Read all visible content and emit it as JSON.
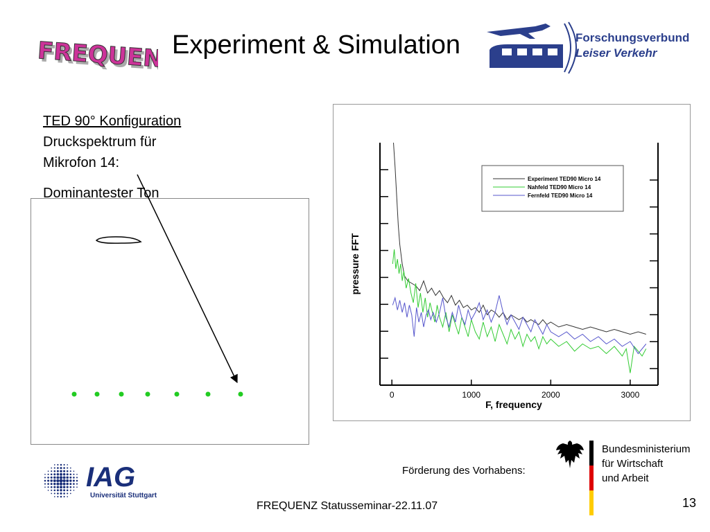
{
  "header": {
    "title": "Experiment & Simulation",
    "frequenz_logo_text": "FREQUENZ",
    "partner_logo": {
      "line1": "Forschungsverbund",
      "line2": "Leiser Verkehr"
    }
  },
  "text_block": {
    "line1": "TED 90° Konfiguration",
    "line2": "Druckspektrum für",
    "line3": "Mikrofon 14:",
    "line4": "Dominantester Ton"
  },
  "simulation": {
    "microphone_count": 7
  },
  "chart_data": {
    "type": "line",
    "xlabel": "F, frequency",
    "ylabel": "pressure FFT",
    "xlim": [
      -150,
      3350
    ],
    "xticks": [
      0,
      1000,
      2000,
      3000
    ],
    "ylim": [
      0,
      1
    ],
    "y_tick_labels": false,
    "legend_placement": "top-right",
    "series": [
      {
        "name": "Experiment TED90 Micro 14",
        "color": "#333333",
        "x": [
          20,
          40,
          60,
          80,
          100,
          130,
          160,
          200,
          250,
          300,
          350,
          400,
          450,
          500,
          550,
          600,
          650,
          700,
          750,
          800,
          850,
          900,
          950,
          1000,
          1050,
          1100,
          1150,
          1200,
          1250,
          1300,
          1350,
          1400,
          1450,
          1500,
          1550,
          1600,
          1650,
          1700,
          1750,
          1800,
          1850,
          1900,
          1950,
          2000,
          2100,
          2200,
          2300,
          2400,
          2500,
          2600,
          2700,
          2800,
          2900,
          3000,
          3100,
          3200
        ],
        "y": [
          1.0,
          0.9,
          0.78,
          0.66,
          0.58,
          0.5,
          0.45,
          0.43,
          0.42,
          0.41,
          0.39,
          0.43,
          0.38,
          0.4,
          0.37,
          0.39,
          0.36,
          0.34,
          0.37,
          0.33,
          0.35,
          0.32,
          0.33,
          0.31,
          0.32,
          0.3,
          0.33,
          0.29,
          0.31,
          0.3,
          0.28,
          0.3,
          0.27,
          0.29,
          0.28,
          0.27,
          0.28,
          0.26,
          0.27,
          0.26,
          0.25,
          0.27,
          0.25,
          0.26,
          0.24,
          0.25,
          0.24,
          0.23,
          0.24,
          0.23,
          0.22,
          0.23,
          0.22,
          0.21,
          0.22,
          0.21
        ]
      },
      {
        "name": "Nahfeld TED90 Micro 14",
        "color": "#33cc33",
        "x": [
          10,
          30,
          50,
          70,
          90,
          110,
          130,
          150,
          180,
          210,
          240,
          270,
          300,
          330,
          360,
          390,
          420,
          450,
          480,
          510,
          540,
          570,
          600,
          640,
          680,
          720,
          760,
          800,
          840,
          880,
          920,
          960,
          1000,
          1050,
          1100,
          1150,
          1200,
          1250,
          1300,
          1350,
          1400,
          1450,
          1500,
          1550,
          1600,
          1650,
          1700,
          1750,
          1800,
          1850,
          1900,
          1950,
          2000,
          2100,
          2200,
          2300,
          2400,
          2500,
          2600,
          2700,
          2800,
          2900,
          2950,
          3000,
          3050,
          3100,
          3150,
          3200
        ],
        "y": [
          0.5,
          0.56,
          0.48,
          0.52,
          0.46,
          0.5,
          0.43,
          0.47,
          0.4,
          0.44,
          0.38,
          0.34,
          0.42,
          0.32,
          0.38,
          0.3,
          0.36,
          0.28,
          0.34,
          0.3,
          0.26,
          0.33,
          0.28,
          0.24,
          0.3,
          0.22,
          0.29,
          0.25,
          0.21,
          0.28,
          0.24,
          0.2,
          0.27,
          0.22,
          0.19,
          0.26,
          0.2,
          0.24,
          0.18,
          0.25,
          0.21,
          0.17,
          0.23,
          0.19,
          0.22,
          0.16,
          0.21,
          0.18,
          0.2,
          0.15,
          0.2,
          0.17,
          0.19,
          0.16,
          0.18,
          0.14,
          0.17,
          0.15,
          0.16,
          0.13,
          0.16,
          0.12,
          0.15,
          0.05,
          0.16,
          0.14,
          0.12,
          0.15
        ]
      },
      {
        "name": "Fernfeld TED90 Micro 14",
        "color": "#5555cc",
        "x": [
          10,
          40,
          70,
          100,
          130,
          160,
          190,
          220,
          250,
          280,
          310,
          340,
          370,
          400,
          430,
          460,
          490,
          520,
          560,
          600,
          640,
          680,
          720,
          760,
          800,
          840,
          880,
          920,
          960,
          1000,
          1050,
          1100,
          1150,
          1200,
          1250,
          1300,
          1350,
          1400,
          1450,
          1500,
          1550,
          1600,
          1650,
          1700,
          1750,
          1800,
          1850,
          1900,
          1950,
          2000,
          2100,
          2200,
          2300,
          2400,
          2500,
          2600,
          2700,
          2800,
          2900,
          3000,
          3100,
          3200
        ],
        "y": [
          0.33,
          0.36,
          0.31,
          0.35,
          0.3,
          0.34,
          0.28,
          0.33,
          0.29,
          0.2,
          0.32,
          0.26,
          0.3,
          0.24,
          0.29,
          0.31,
          0.27,
          0.3,
          0.26,
          0.3,
          0.36,
          0.28,
          0.24,
          0.3,
          0.26,
          0.33,
          0.28,
          0.25,
          0.31,
          0.27,
          0.3,
          0.34,
          0.27,
          0.31,
          0.26,
          0.3,
          0.37,
          0.3,
          0.25,
          0.29,
          0.26,
          0.23,
          0.28,
          0.25,
          0.22,
          0.27,
          0.24,
          0.21,
          0.25,
          0.22,
          0.2,
          0.22,
          0.19,
          0.21,
          0.18,
          0.2,
          0.17,
          0.19,
          0.16,
          0.18,
          0.13,
          0.17
        ]
      }
    ]
  },
  "footer": {
    "seminar": "FREQUENZ  Statusseminar-22.11.07",
    "foerderung": "Förderung des Vorhabens:",
    "ministry_line1": "Bundesministerium",
    "ministry_line2": "für Wirtschaft",
    "ministry_line3": "und Arbeit",
    "iag_text": "IAG",
    "iag_sub": "Universität Stuttgart",
    "page_number": "13"
  }
}
